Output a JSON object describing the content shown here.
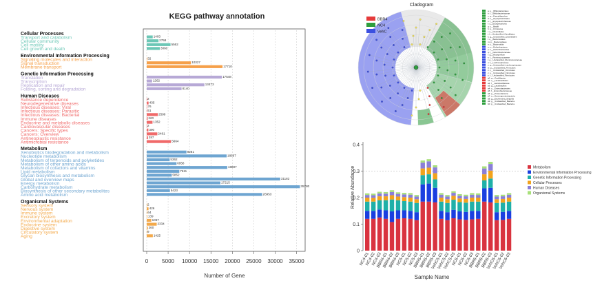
{
  "chart_data": [
    {
      "type": "bar",
      "orientation": "horizontal",
      "title": "KEGG pathway annotation",
      "xlabel": "Number of Gene",
      "xlim": [
        0,
        37000
      ],
      "xticks": [
        0,
        5000,
        10000,
        15000,
        20000,
        25000,
        30000,
        35000
      ],
      "grid": "dashed vertical",
      "groups": [
        {
          "name": "Cellular Processes",
          "color": "#6cc7b6",
          "items": [
            {
              "label": "Transport and catabolism",
              "value": 1403
            },
            {
              "label": "Cellular community",
              "value": 2758
            },
            {
              "label": "Cell motility",
              "value": 5562
            },
            {
              "label": "Cell growth and death",
              "value": 3060
            }
          ]
        },
        {
          "name": "Environmental Information Processing",
          "color": "#f5a04a",
          "items": [
            {
              "label": "Signaling molecules and interaction",
              "value": 32
            },
            {
              "label": "Signal transduction",
              "value": 10327
            },
            {
              "label": "Membrane transport",
              "value": 17710
            }
          ]
        },
        {
          "name": "Genetic Information Processing",
          "color": "#b7a9d6",
          "items": [
            {
              "label": "Translation",
              "value": 17548
            },
            {
              "label": "Transcription",
              "value": 1262
            },
            {
              "label": "Replication and repair",
              "value": 13473
            },
            {
              "label": "Folding, sorting and degradation",
              "value": 8140
            }
          ]
        },
        {
          "name": "Human Diseases",
          "color": "#f06a6a",
          "items": [
            {
              "label": "Substance dependence",
              "value": 2
            },
            {
              "label": "Neurodegenerative diseases",
              "value": 435
            },
            {
              "label": "Infectious diseases: Viral",
              "value": 76
            },
            {
              "label": "Infectious diseases: Parasitic",
              "value": 51
            },
            {
              "label": "Infectious diseases: Bacterial",
              "value": 2599
            },
            {
              "label": "Immune diseases",
              "value": 220
            },
            {
              "label": "Endocrine and metabolic diseases",
              "value": 1352
            },
            {
              "label": "Cardiovascular diseases",
              "value": 2
            },
            {
              "label": "Cancers: Specific types",
              "value": 390
            },
            {
              "label": "Cancers: Overview",
              "value": 2481
            },
            {
              "label": "Antineoplastic resistance",
              "value": 287
            },
            {
              "label": "Antimicrobial resistance",
              "value": 5664
            }
          ]
        },
        {
          "name": "Metabolism",
          "color": "#6ea5d1",
          "items": [
            {
              "label": "Xenobiotics biodegradation and metabolism",
              "value": 9281
            },
            {
              "label": "Nucleotide metabolism",
              "value": 18667
            },
            {
              "label": "Metabolism of terpenoids and polyketides",
              "value": 5362
            },
            {
              "label": "Metabolism of other amino acids",
              "value": 6958
            },
            {
              "label": "Metabolism of cofactors and vitamins",
              "value": 18807
            },
            {
              "label": "Lipid metabolism",
              "value": 7611
            },
            {
              "label": "Glycan biosynthesis and metabolism",
              "value": 5852
            },
            {
              "label": "Global and overview maps",
              "value": 31182
            },
            {
              "label": "Energy metabolism",
              "value": 17215
            },
            {
              "label": "Carbohydrate metabolism",
              "value": 35780
            },
            {
              "label": "Biosynthesis of other secondary metabolites",
              "value": 5423
            },
            {
              "label": "Amino acid metabolism",
              "value": 26953
            }
          ]
        },
        {
          "name": "Organismal Systems",
          "color": "#f3a94a",
          "items": [
            {
              "label": "Sensory system",
              "value": 2
            },
            {
              "label": "Nervous system",
              "value": 426
            },
            {
              "label": "Immune system",
              "value": 64
            },
            {
              "label": "Excretory system",
              "value": 139
            },
            {
              "label": "Environmental adaptation",
              "value": 1067
            },
            {
              "label": "Endocrine system",
              "value": 2334
            },
            {
              "label": "Digestive system",
              "value": 260
            },
            {
              "label": "Circulatory system",
              "value": 9
            },
            {
              "label": "Aging",
              "value": 1425
            }
          ]
        }
      ]
    },
    {
      "type": "cladogram",
      "title": "Cladogram",
      "legend": [
        {
          "name": "BBR4",
          "color": "#e53a3a"
        },
        {
          "name": "NC4",
          "color": "#2e9e3e"
        },
        {
          "name": "VehC",
          "color": "#3b4fe0"
        }
      ],
      "taxa_labels": [
        "a: o__Bifidobacteriales",
        "b: f__Bifidobacteriaceae",
        "c: g__Faecalibaculum",
        "d: o__Erysipelotrichales",
        "e: f__Erysipelotrichaceae",
        "f: c__Erysipelotrichia",
        "g: c__Bacilli",
        "h: p__Firmicutes",
        "i: o__Clostridiales",
        "j: f__Unclassified_Candidatus",
        "k: g__Unclassified_Clostridiales",
        "l: o__Bacteroidales",
        "m: p__Bacteroidetes",
        "n: c__Bacteroidia",
        "o: c__Deferribacteres",
        "p: o__Deferribacterales",
        "q: f__Deferribacteraceae",
        "r: g__Mucispirillum",
        "s: f__Ruminococcaceae",
        "t: g__Unclassified_Ruminococcaceae",
        "u: f__Lachnospiraceae",
        "v: g__Unclassified_Lachnospiraceae",
        "w: p__Unclassified_Firmicutes",
        "x: c__Unclassified_Firmicutes",
        "y: o__Unclassified_Firmicutes",
        "z: f__Unclassified_Firmicutes",
        "a0: g__Oscillibacter",
        "a1: o__Lactobacillales",
        "a2: f__Lactobacillaceae",
        "a3: g__Lactobacillus",
        "a4: o__Enterobacterales",
        "a5: f__Enterobacteriaceae",
        "a6: p__Proteobacteria",
        "a7: c__Gammaproteobacteria",
        "a8: g__Escherichia_Shigella",
        "a9: g__Unclassified_Bacteria",
        "b0: p__Unclassified_Bacteria"
      ]
    },
    {
      "type": "bar",
      "stacked": true,
      "xlabel": "Sample Name",
      "ylabel": "Relative Abundance",
      "ylim": [
        0,
        0.4
      ],
      "yticks": [
        0,
        0.1,
        0.2,
        0.3,
        0.4
      ],
      "reference_line": 0.3,
      "categories": [
        "NC4-01",
        "NC4-02",
        "NC4-03",
        "BBR4-01",
        "BBR4-02",
        "BBR4-03",
        "NC5-01",
        "NC5-02",
        "NC5-03",
        "BBR5-01",
        "BBR5-02",
        "BBR5-03",
        "VehC5-01",
        "VehC5-02",
        "VehC5-03",
        "NC6-01",
        "NC6-02",
        "NC6-03",
        "BBR6-01",
        "BBR6-02",
        "BBR6-03",
        "VehC6-01",
        "VehC6-02",
        "VehC6-03"
      ],
      "series": [
        {
          "name": "Metabolism",
          "color": "#d9333f",
          "values": [
            0.12,
            0.12,
            0.125,
            0.12,
            0.108,
            0.12,
            0.122,
            0.12,
            0.115,
            0.185,
            0.185,
            0.182,
            0.12,
            0.115,
            0.122,
            0.118,
            0.116,
            0.118,
            0.12,
            0.185,
            0.182,
            0.115,
            0.116,
            0.12
          ]
        },
        {
          "name": "Environmental Information Processing",
          "color": "#1a3fe0",
          "values": [
            0.03,
            0.03,
            0.03,
            0.032,
            0.04,
            0.032,
            0.03,
            0.03,
            0.03,
            0.065,
            0.068,
            0.055,
            0.03,
            0.03,
            0.032,
            0.03,
            0.03,
            0.032,
            0.03,
            0.05,
            0.055,
            0.03,
            0.03,
            0.03
          ]
        },
        {
          "name": "Genetic Information Processing",
          "color": "#1fb0a8",
          "values": [
            0.035,
            0.035,
            0.035,
            0.038,
            0.045,
            0.038,
            0.035,
            0.035,
            0.035,
            0.035,
            0.035,
            0.032,
            0.035,
            0.035,
            0.038,
            0.035,
            0.035,
            0.035,
            0.035,
            0.03,
            0.035,
            0.035,
            0.035,
            0.035
          ]
        },
        {
          "name": "Cellular Processes",
          "color": "#f2a31c",
          "values": [
            0.015,
            0.014,
            0.015,
            0.015,
            0.016,
            0.014,
            0.015,
            0.015,
            0.014,
            0.025,
            0.025,
            0.023,
            0.015,
            0.014,
            0.015,
            0.014,
            0.014,
            0.015,
            0.015,
            0.023,
            0.03,
            0.014,
            0.014,
            0.015
          ]
        },
        {
          "name": "Human Diseases",
          "color": "#8a7fd8",
          "values": [
            0.01,
            0.01,
            0.011,
            0.01,
            0.012,
            0.01,
            0.01,
            0.011,
            0.01,
            0.022,
            0.024,
            0.022,
            0.011,
            0.01,
            0.011,
            0.01,
            0.01,
            0.011,
            0.01,
            0.022,
            0.025,
            0.01,
            0.01,
            0.011
          ]
        },
        {
          "name": "Organismal Systems",
          "color": "#a8e07a",
          "values": [
            0.006,
            0.006,
            0.006,
            0.006,
            0.007,
            0.006,
            0.006,
            0.006,
            0.006,
            0.008,
            0.008,
            0.008,
            0.006,
            0.006,
            0.006,
            0.006,
            0.006,
            0.006,
            0.006,
            0.008,
            0.008,
            0.006,
            0.006,
            0.006
          ]
        }
      ]
    }
  ]
}
